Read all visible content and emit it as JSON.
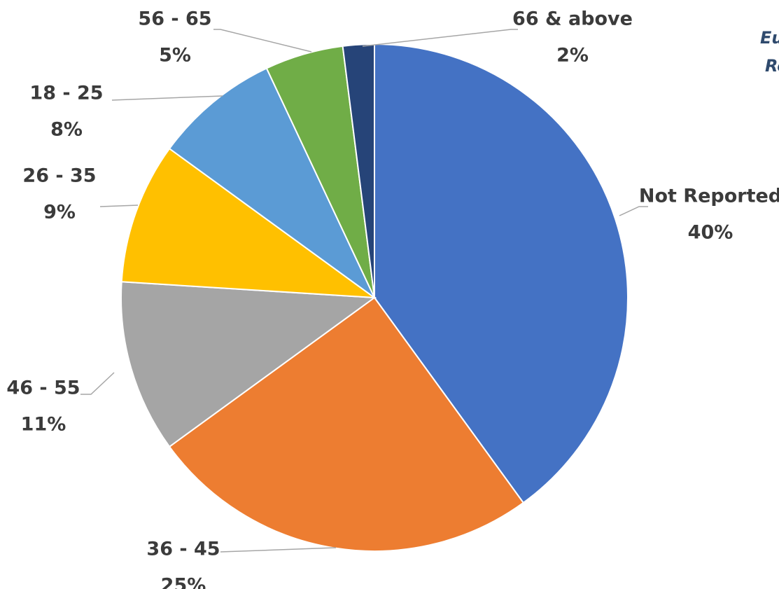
{
  "chart_data": {
    "type": "pie",
    "title": "",
    "slices": [
      {
        "label": "Not Reported",
        "percent_label": "40%",
        "value": 40,
        "color": "#4472C4"
      },
      {
        "label": "36 - 45",
        "percent_label": "25%",
        "value": 25,
        "color": "#ED7D31"
      },
      {
        "label": "46 - 55",
        "percent_label": "11%",
        "value": 11,
        "color": "#A5A5A5"
      },
      {
        "label": "26 - 35",
        "percent_label": "9%",
        "value": 9,
        "color": "#FFC000"
      },
      {
        "label": "18 - 25",
        "percent_label": "8%",
        "value": 8,
        "color": "#5B9BD5"
      },
      {
        "label": "56 - 65",
        "percent_label": "5%",
        "value": 5,
        "color": "#70AD47"
      },
      {
        "label": "66 & above",
        "percent_label": "2%",
        "value": 2,
        "color": "#264478"
      }
    ],
    "legend": "none",
    "data_labels": "outside with leader lines"
  },
  "corner_text": [
    "Eu",
    "Re"
  ]
}
